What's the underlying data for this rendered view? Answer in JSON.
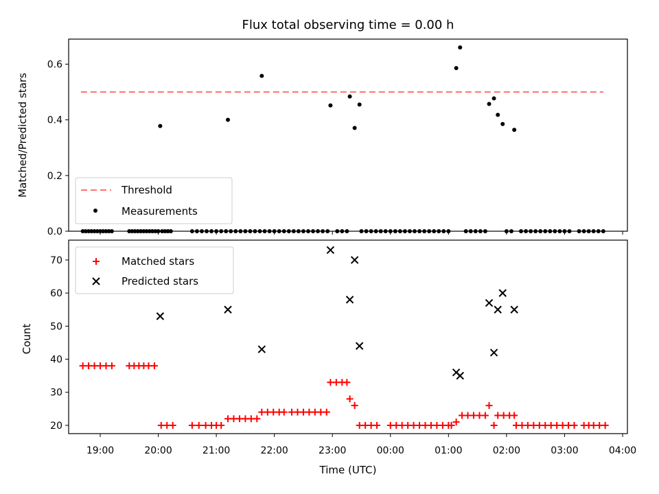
{
  "chart_data": [
    {
      "type": "scatter",
      "title": "Flux total observing time = 0.00 h",
      "xlabel": "",
      "ylabel": "Matched/Predicted stars",
      "ylim": [
        0,
        0.69
      ],
      "yticks": [
        "0.0",
        "0.2",
        "0.4",
        "0.6"
      ],
      "threshold": {
        "name": "Threshold",
        "value": 0.5,
        "x_range": [
          "18:40",
          "03:40"
        ],
        "color": "#ff7070"
      },
      "series": [
        {
          "name": "Measurements",
          "color": "#000000",
          "points": [
            [
              "20:02",
              0.378
            ],
            [
              "21:12",
              0.4
            ],
            [
              "21:47",
              0.558
            ],
            [
              "22:58",
              0.452
            ],
            [
              "23:18",
              0.484
            ],
            [
              "23:23",
              0.371
            ],
            [
              "23:28",
              0.455
            ],
            [
              "01:08",
              0.586
            ],
            [
              "01:12",
              0.66
            ],
            [
              "01:42",
              0.457
            ],
            [
              "01:47",
              0.477
            ],
            [
              "01:51",
              0.418
            ],
            [
              "01:56",
              0.385
            ],
            [
              "02:08",
              0.364
            ]
          ],
          "zero_times": [
            "18:42",
            "18:45",
            "18:48",
            "18:51",
            "18:54",
            "18:57",
            "19:00",
            "19:03",
            "19:06",
            "19:09",
            "19:12",
            "19:30",
            "19:33",
            "19:36",
            "19:39",
            "19:42",
            "19:45",
            "19:48",
            "19:51",
            "19:54",
            "19:57",
            "20:00",
            "20:04",
            "20:07",
            "20:10",
            "20:13",
            "20:35",
            "20:40",
            "20:45",
            "20:50",
            "20:55",
            "21:00",
            "21:05",
            "21:10",
            "21:15",
            "21:20",
            "21:25",
            "21:30",
            "21:35",
            "21:40",
            "21:45",
            "21:50",
            "21:55",
            "22:00",
            "22:05",
            "22:10",
            "22:15",
            "22:20",
            "22:25",
            "22:30",
            "22:35",
            "22:40",
            "22:45",
            "22:50",
            "22:55",
            "23:05",
            "23:10",
            "23:15",
            "23:30",
            "23:35",
            "23:40",
            "23:45",
            "23:50",
            "23:55",
            "00:00",
            "00:05",
            "00:10",
            "00:15",
            "00:20",
            "00:25",
            "00:30",
            "00:35",
            "00:40",
            "00:45",
            "00:50",
            "00:55",
            "01:00",
            "01:18",
            "01:23",
            "01:28",
            "01:33",
            "01:38",
            "02:00",
            "02:05",
            "02:15",
            "02:20",
            "02:25",
            "02:30",
            "02:35",
            "02:40",
            "02:45",
            "02:50",
            "02:55",
            "03:00",
            "03:05",
            "03:15",
            "03:20",
            "03:25",
            "03:30",
            "03:35",
            "03:40"
          ]
        }
      ],
      "legend": [
        "Threshold",
        "Measurements"
      ],
      "legend_position": "lower-left"
    },
    {
      "type": "scatter",
      "title": "",
      "xlabel": "Time (UTC)",
      "ylabel": "Count",
      "ylim": [
        17.5,
        76
      ],
      "yticks": [
        "20",
        "30",
        "40",
        "50",
        "60",
        "70"
      ],
      "xticks": [
        "19:00",
        "20:00",
        "21:00",
        "22:00",
        "23:00",
        "00:00",
        "01:00",
        "02:00",
        "03:00",
        "04:00"
      ],
      "series": [
        {
          "name": "Matched stars",
          "marker": "plus",
          "color": "#ff0000",
          "points": [
            [
              "18:42",
              38
            ],
            [
              "18:48",
              38
            ],
            [
              "18:54",
              38
            ],
            [
              "19:00",
              38
            ],
            [
              "19:06",
              38
            ],
            [
              "19:12",
              38
            ],
            [
              "19:30",
              38
            ],
            [
              "19:35",
              38
            ],
            [
              "19:40",
              38
            ],
            [
              "19:45",
              38
            ],
            [
              "19:50",
              38
            ],
            [
              "19:56",
              38
            ],
            [
              "20:03",
              20
            ],
            [
              "20:09",
              20
            ],
            [
              "20:15",
              20
            ],
            [
              "20:35",
              20
            ],
            [
              "20:42",
              20
            ],
            [
              "20:49",
              20
            ],
            [
              "20:55",
              20
            ],
            [
              "21:00",
              20
            ],
            [
              "21:05",
              20
            ],
            [
              "21:12",
              22
            ],
            [
              "21:18",
              22
            ],
            [
              "21:24",
              22
            ],
            [
              "21:30",
              22
            ],
            [
              "21:36",
              22
            ],
            [
              "21:42",
              22
            ],
            [
              "21:47",
              24
            ],
            [
              "21:53",
              24
            ],
            [
              "21:59",
              24
            ],
            [
              "22:05",
              24
            ],
            [
              "22:10",
              24
            ],
            [
              "22:18",
              24
            ],
            [
              "22:24",
              24
            ],
            [
              "22:30",
              24
            ],
            [
              "22:36",
              24
            ],
            [
              "22:42",
              24
            ],
            [
              "22:48",
              24
            ],
            [
              "22:54",
              24
            ],
            [
              "22:58",
              33
            ],
            [
              "23:04",
              33
            ],
            [
              "23:10",
              33
            ],
            [
              "23:15",
              33
            ],
            [
              "23:18",
              28
            ],
            [
              "23:23",
              26
            ],
            [
              "23:28",
              20
            ],
            [
              "23:34",
              20
            ],
            [
              "23:40",
              20
            ],
            [
              "23:46",
              20
            ],
            [
              "24:00",
              20
            ],
            [
              "24:06",
              20
            ],
            [
              "24:12",
              20
            ],
            [
              "24:18",
              20
            ],
            [
              "24:24",
              20
            ],
            [
              "24:30",
              20
            ],
            [
              "24:36",
              20
            ],
            [
              "24:42",
              20
            ],
            [
              "24:48",
              20
            ],
            [
              "24:54",
              20
            ],
            [
              "25:00",
              20
            ],
            [
              "25:03",
              20
            ],
            [
              "25:08",
              21
            ],
            [
              "25:14",
              23
            ],
            [
              "25:20",
              23
            ],
            [
              "25:26",
              23
            ],
            [
              "25:32",
              23
            ],
            [
              "25:38",
              23
            ],
            [
              "25:42",
              26
            ],
            [
              "25:47",
              20
            ],
            [
              "25:51",
              23
            ],
            [
              "25:57",
              23
            ],
            [
              "26:03",
              23
            ],
            [
              "26:08",
              23
            ],
            [
              "26:10",
              20
            ],
            [
              "26:16",
              20
            ],
            [
              "26:22",
              20
            ],
            [
              "26:28",
              20
            ],
            [
              "26:34",
              20
            ],
            [
              "26:40",
              20
            ],
            [
              "26:46",
              20
            ],
            [
              "26:52",
              20
            ],
            [
              "26:58",
              20
            ],
            [
              "27:04",
              20
            ],
            [
              "27:10",
              20
            ],
            [
              "27:20",
              20
            ],
            [
              "27:25",
              20
            ],
            [
              "27:30",
              20
            ],
            [
              "27:36",
              20
            ],
            [
              "27:42",
              20
            ]
          ]
        },
        {
          "name": "Predicted stars",
          "marker": "x",
          "color": "#000000",
          "points": [
            [
              "20:02",
              53
            ],
            [
              "21:12",
              55
            ],
            [
              "21:47",
              43
            ],
            [
              "22:58",
              73
            ],
            [
              "23:18",
              58
            ],
            [
              "23:23",
              70
            ],
            [
              "23:28",
              44
            ],
            [
              "25:08",
              36
            ],
            [
              "25:12",
              35
            ],
            [
              "25:42",
              57
            ],
            [
              "25:47",
              42
            ],
            [
              "25:51",
              55
            ],
            [
              "25:56",
              60
            ],
            [
              "26:08",
              55
            ]
          ]
        }
      ],
      "legend": [
        "Matched stars",
        "Predicted stars"
      ],
      "legend_position": "upper-left"
    }
  ]
}
